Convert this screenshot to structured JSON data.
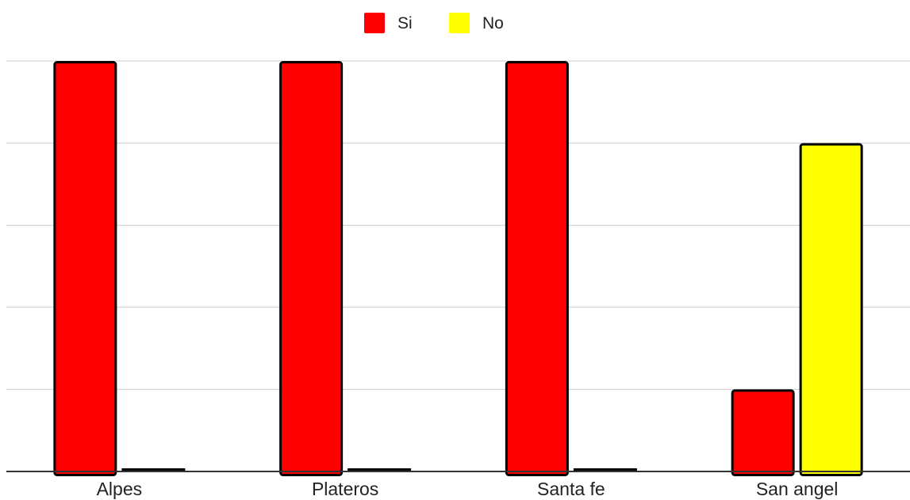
{
  "chart_data": {
    "type": "bar",
    "categories": [
      "Alpes",
      "Plateros",
      "Santa fe",
      "San angel"
    ],
    "series": [
      {
        "name": "Si",
        "values": [
          5,
          5,
          5,
          1
        ],
        "color": "#ff0000"
      },
      {
        "name": "No",
        "values": [
          0,
          0,
          0,
          4
        ],
        "color": "#ffff00"
      }
    ],
    "ylim": [
      0,
      5
    ],
    "grid": true,
    "legend": "top-center",
    "bar_outline_color": "#000000"
  }
}
